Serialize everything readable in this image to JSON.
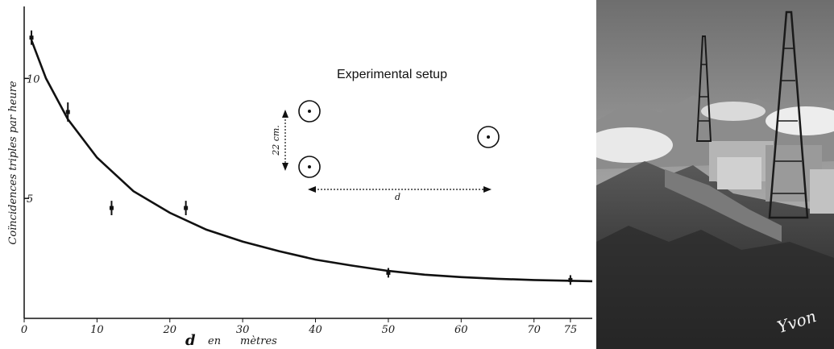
{
  "chart_data": {
    "type": "scatter",
    "title": "",
    "xlabel": "d",
    "xlabel_suffix_1": "en",
    "xlabel_suffix_2": "mètres",
    "ylabel": "Coïncidences triples par heure",
    "xlim": [
      0,
      78
    ],
    "ylim": [
      0,
      13
    ],
    "x_ticks": [
      0,
      10,
      20,
      30,
      40,
      50,
      60,
      70,
      75
    ],
    "y_ticks": [
      5,
      10
    ],
    "grid": false,
    "series": [
      {
        "points": [
          {
            "x": 1,
            "y": 11.7,
            "err": 0.3
          },
          {
            "x": 6,
            "y": 8.6,
            "err": 0.4
          },
          {
            "x": 12,
            "y": 4.6,
            "err": 0.3
          },
          {
            "x": 22.2,
            "y": 4.6,
            "err": 0.3
          },
          {
            "x": 50,
            "y": 1.9,
            "err": 0.2
          },
          {
            "x": 75,
            "y": 1.6,
            "err": 0.2
          }
        ]
      }
    ],
    "fit_curve": [
      {
        "x": 1,
        "y": 11.6
      },
      {
        "x": 3,
        "y": 10.0
      },
      {
        "x": 6,
        "y": 8.3
      },
      {
        "x": 10,
        "y": 6.7
      },
      {
        "x": 15,
        "y": 5.3
      },
      {
        "x": 20,
        "y": 4.4
      },
      {
        "x": 25,
        "y": 3.7
      },
      {
        "x": 30,
        "y": 3.2
      },
      {
        "x": 35,
        "y": 2.8
      },
      {
        "x": 40,
        "y": 2.45
      },
      {
        "x": 45,
        "y": 2.2
      },
      {
        "x": 50,
        "y": 1.98
      },
      {
        "x": 55,
        "y": 1.82
      },
      {
        "x": 60,
        "y": 1.72
      },
      {
        "x": 65,
        "y": 1.65
      },
      {
        "x": 70,
        "y": 1.6
      },
      {
        "x": 78,
        "y": 1.55
      }
    ]
  },
  "setup": {
    "title": "Experimental setup",
    "vertical_distance_label": "22 cm.",
    "horizontal_distance_label": "d"
  },
  "photo": {
    "signature": "Yvon",
    "icon": "mountain-observatory-photo"
  }
}
